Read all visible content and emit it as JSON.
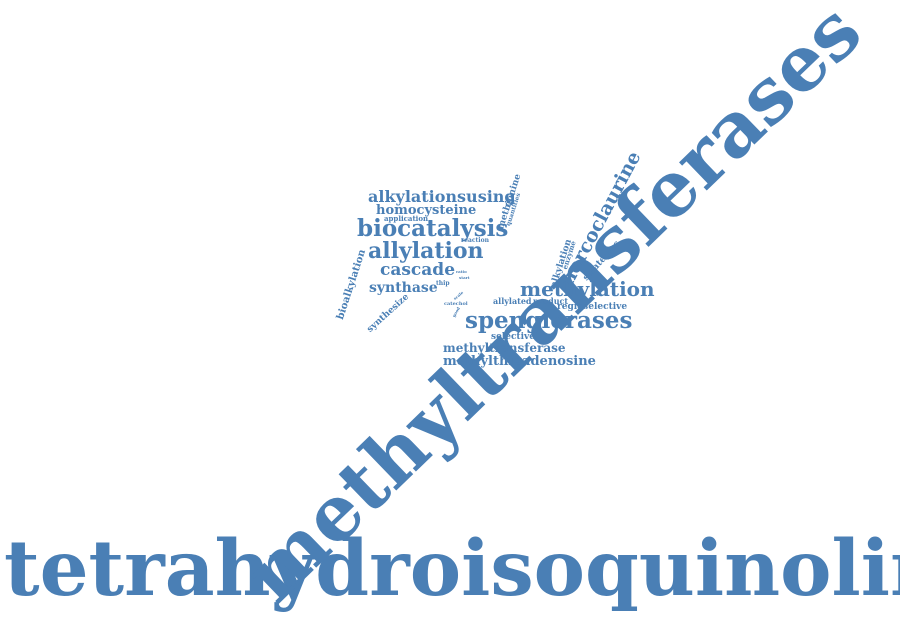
{
  "accent_color": "#4a7fb5",
  "words": {
    "tetrahydroisoquinolines": "tetrahydroisoquinolines",
    "methyltransferases": "methyltransferases",
    "spenglerases": "spenglerases",
    "biocatalysis": "biocatalysis",
    "allylation": "allylation",
    "methylation": "methylation",
    "norcoclaurine": "norcoclaurine",
    "alkylationsusing": "alkylationsusing",
    "homocysteine": "homocysteine",
    "cascade": "cascade",
    "synthase": "synthase",
    "methyltransferase": "methyltransferase",
    "methylthioadenosine": "methylthioadenosine",
    "regioselective": "regioselective",
    "selective": "selective",
    "bioalkylation": "bioalkylation",
    "synthesize": "synthesize",
    "methionine": "methionine",
    "alkylation": "alkylation",
    "strategies": "strategies",
    "allylated": "allylated",
    "product": "product",
    "application": "application",
    "quantities": "quantities",
    "reaction": "reaction",
    "enzyme": "enzyme",
    "thip": "thip",
    "catechol": "catechol",
    "start": "start",
    "ratio": "ratio",
    "scale": "scale",
    "good": "good"
  }
}
